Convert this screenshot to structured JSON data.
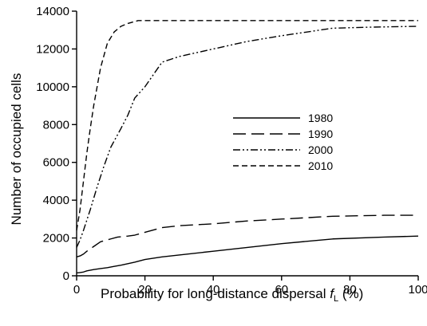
{
  "chart_data": {
    "type": "line",
    "title": "",
    "xlabel_prefix": "Probability for long-distance dispersal ",
    "xlabel_var": "f",
    "xlabel_sub": "L",
    "xlabel_suffix": " (%)",
    "ylabel": "Number of occupied cells",
    "xlim": [
      0,
      100
    ],
    "ylim": [
      0,
      14000
    ],
    "xticks": [
      0,
      20,
      40,
      60,
      80,
      100
    ],
    "yticks": [
      0,
      2000,
      4000,
      6000,
      8000,
      10000,
      12000,
      14000
    ],
    "legend_position": "center-right",
    "series": [
      {
        "name": "1980",
        "dash": "solid",
        "color": "#000000",
        "x": [
          0,
          1,
          2,
          3,
          5,
          7,
          9,
          11,
          13,
          15,
          17,
          20,
          25,
          30,
          40,
          50,
          60,
          75,
          90,
          100
        ],
        "y": [
          150,
          170,
          200,
          260,
          330,
          380,
          430,
          500,
          560,
          640,
          720,
          860,
          1000,
          1100,
          1300,
          1500,
          1700,
          1950,
          2050,
          2100
        ]
      },
      {
        "name": "1990",
        "dash": "long-dash",
        "color": "#000000",
        "x": [
          0,
          1,
          2,
          3,
          5,
          7,
          10,
          12,
          15,
          17,
          20,
          25,
          30,
          40,
          50,
          60,
          75,
          90,
          100
        ],
        "y": [
          1000,
          1050,
          1150,
          1300,
          1550,
          1800,
          1950,
          2050,
          2100,
          2150,
          2300,
          2550,
          2650,
          2750,
          2900,
          3000,
          3150,
          3200,
          3200
        ]
      },
      {
        "name": "2000",
        "dash": "dash-dot-dot",
        "color": "#000000",
        "x": [
          0,
          1,
          2,
          4,
          6,
          8,
          10,
          13,
          15,
          17,
          20,
          25,
          30,
          40,
          50,
          60,
          75,
          85,
          100
        ],
        "y": [
          1500,
          1900,
          2400,
          3500,
          4700,
          5800,
          6800,
          7800,
          8500,
          9400,
          10000,
          11300,
          11600,
          12000,
          12400,
          12700,
          13100,
          13150,
          13200
        ]
      },
      {
        "name": "2010",
        "dash": "short-dash",
        "color": "#000000",
        "x": [
          0,
          1,
          2,
          3,
          4,
          5,
          7,
          9,
          11,
          13,
          15,
          18,
          20,
          25,
          40,
          60,
          80,
          100
        ],
        "y": [
          2400,
          3500,
          5000,
          6500,
          7800,
          9000,
          11000,
          12300,
          12900,
          13200,
          13350,
          13500,
          13500,
          13500,
          13500,
          13500,
          13500,
          13500
        ]
      }
    ]
  }
}
